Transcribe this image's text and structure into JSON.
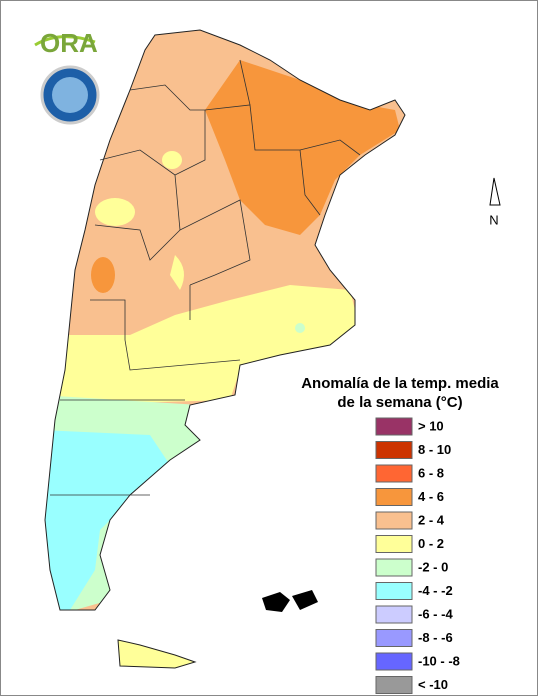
{
  "logo": {
    "text": "ORA"
  },
  "north_label": "N",
  "legend": {
    "title_lines": [
      "Anomalía de la temp. media",
      "de la semana (°C)"
    ],
    "items": [
      {
        "label": "> 10",
        "color": "#993366"
      },
      {
        "label": "8 - 10",
        "color": "#cc3300"
      },
      {
        "label": "6 - 8",
        "color": "#ff6633"
      },
      {
        "label": "4 - 6",
        "color": "#f7963c"
      },
      {
        "label": "2 - 4",
        "color": "#f9c08f"
      },
      {
        "label": "0 - 2",
        "color": "#ffff99"
      },
      {
        "label": "-2 - 0",
        "color": "#ccffcc"
      },
      {
        "label": "-4 - -2",
        "color": "#99ffff"
      },
      {
        "label": "-6 - -4",
        "color": "#ccccff"
      },
      {
        "label": "-8 - -6",
        "color": "#9999ff"
      },
      {
        "label": "-10 - -8",
        "color": "#6666ff"
      },
      {
        "label": "< -10",
        "color": "#999999"
      }
    ]
  }
}
